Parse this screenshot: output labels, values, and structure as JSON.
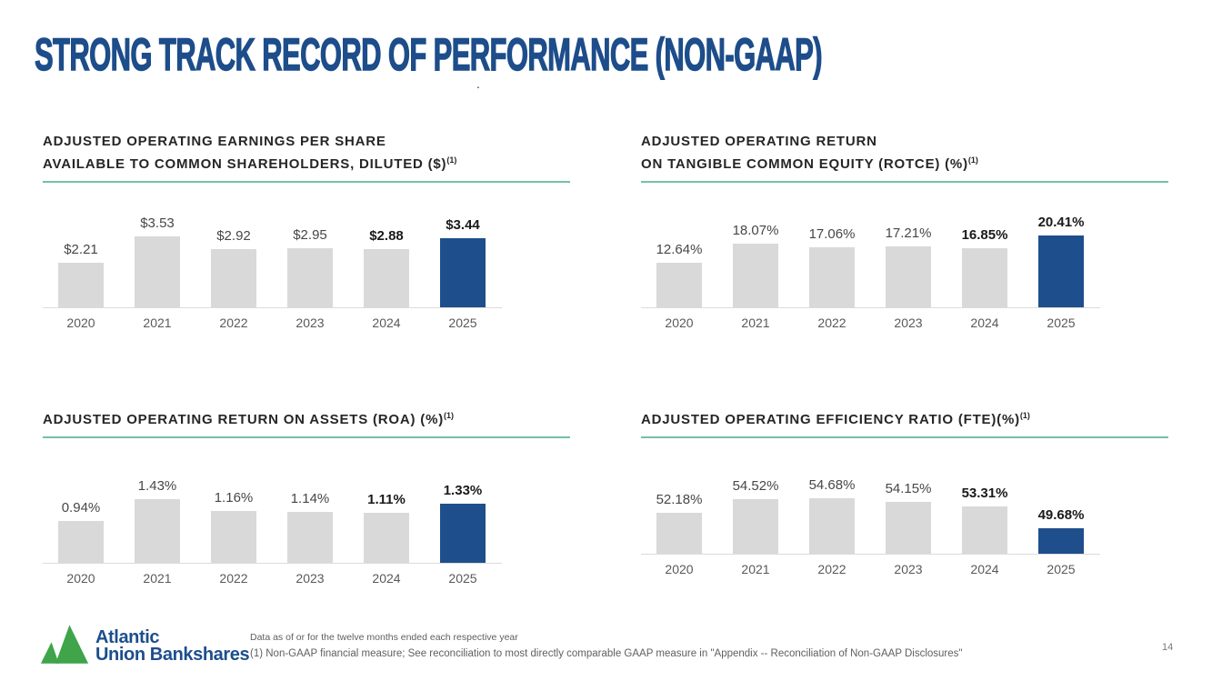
{
  "slide": {
    "title": "STRONG TRACK RECORD OF PERFORMANCE (NON-GAAP)",
    "stray_dot": ".",
    "page_number": "14",
    "footnote_1": "Data as of or for the twelve months ended each respective year",
    "footnote_2": "(1) Non-GAAP financial measure; See reconciliation to most directly comparable GAAP measure in \"Appendix -- Reconciliation of Non-GAAP Disclosures\"",
    "logo": {
      "line1": "Atlantic",
      "line2": "Union Bankshares"
    }
  },
  "colors": {
    "title_blue": "#1d4d8a",
    "logo_blue": "#1d4e8d",
    "bar_highlight_blue": "#1f4e8c",
    "bar_gray": "#d9d9d9",
    "underline_teal": "#74c0a4",
    "logo_green": "#3fa44a"
  },
  "chart_data": [
    {
      "id": "eps",
      "type": "bar",
      "title_lines": [
        "ADJUSTED OPERATING EARNINGS PER SHARE",
        "AVAILABLE TO COMMON SHAREHOLDERS, DILUTED ($)"
      ],
      "title_superscript": "(1)",
      "categories": [
        "2020",
        "2021",
        "2022",
        "2023",
        "2024",
        "2025"
      ],
      "values": [
        2.21,
        3.53,
        2.92,
        2.95,
        2.88,
        3.44
      ],
      "labels": [
        "$2.21",
        "$3.53",
        "$2.92",
        "$2.95",
        "$2.88",
        "$3.44"
      ],
      "bold_label_indices": [
        4,
        5
      ],
      "highlight_index": 5,
      "ylim": [
        0,
        5.8
      ],
      "grid": false,
      "legend": false
    },
    {
      "id": "rotce",
      "type": "bar",
      "title_lines": [
        "ADJUSTED OPERATING RETURN",
        "ON TANGIBLE COMMON EQUITY (ROTCE) (%)"
      ],
      "title_superscript": "(1)",
      "categories": [
        "2020",
        "2021",
        "2022",
        "2023",
        "2024",
        "2025"
      ],
      "values": [
        12.64,
        18.07,
        17.06,
        17.21,
        16.85,
        20.41
      ],
      "labels": [
        "12.64%",
        "18.07%",
        "17.06%",
        "17.21%",
        "16.85%",
        "20.41%"
      ],
      "bold_label_indices": [
        4,
        5
      ],
      "highlight_index": 5,
      "ylim": [
        0,
        33
      ],
      "grid": false,
      "legend": false
    },
    {
      "id": "roa",
      "type": "bar",
      "title_lines": [
        "ADJUSTED OPERATING RETURN ON ASSETS (ROA) (%)"
      ],
      "title_superscript": "(1)",
      "categories": [
        "2020",
        "2021",
        "2022",
        "2023",
        "2024",
        "2025"
      ],
      "values": [
        0.94,
        1.43,
        1.16,
        1.14,
        1.11,
        1.33
      ],
      "labels": [
        "0.94%",
        "1.43%",
        "1.16%",
        "1.14%",
        "1.11%",
        "1.33%"
      ],
      "bold_label_indices": [
        4,
        5
      ],
      "highlight_index": 5,
      "ylim": [
        0,
        2.6
      ],
      "grid": false,
      "legend": false
    },
    {
      "id": "efficiency",
      "type": "bar",
      "title_lines": [
        "ADJUSTED OPERATING EFFICIENCY RATIO (FTE)(%)"
      ],
      "title_superscript": "(1)",
      "categories": [
        "2020",
        "2021",
        "2022",
        "2023",
        "2024",
        "2025"
      ],
      "values": [
        52.18,
        54.52,
        54.68,
        54.15,
        53.31,
        49.68
      ],
      "labels": [
        "52.18%",
        "54.52%",
        "54.68%",
        "54.15%",
        "53.31%",
        "49.68%"
      ],
      "bold_label_indices": [
        4,
        5
      ],
      "highlight_index": 5,
      "ylim": [
        45.3,
        63.5
      ],
      "grid": false,
      "legend": false
    }
  ]
}
